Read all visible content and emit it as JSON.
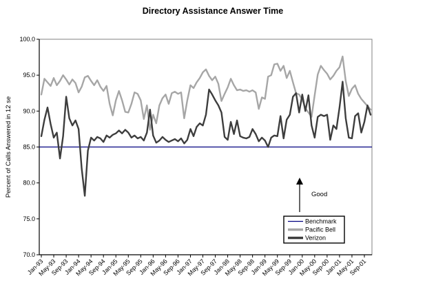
{
  "chart_data": {
    "type": "line",
    "title": "Directory Assistance Answer Time",
    "ylabel": "Percent of Calls Answered in 12 se",
    "xlabel": "",
    "ylim": [
      70,
      100
    ],
    "y_tick_step": 5,
    "y_tick_labels": [
      "100.0",
      "95.0",
      "90.0",
      "85.0",
      "80.0",
      "75.0",
      "70.0"
    ],
    "x_tick_interval": 4,
    "x_tick_labels": [
      "Jan-93",
      "May-93",
      "Sep-93",
      "Jan-94",
      "May-94",
      "Sep-94",
      "Jan-95",
      "May-95",
      "Sep-95",
      "Jan-96",
      "May-96",
      "Sep-96",
      "Jan-97",
      "May-97",
      "Sep-97",
      "Jan-98",
      "May-98",
      "Sep-98",
      "Jan-99",
      "May-99",
      "Sep-99",
      "Jan-00",
      "May-00",
      "Sep-00",
      "Jan-01",
      "May-01",
      "Sep-01"
    ],
    "grid": false,
    "legend_position": "inside-bottom-right",
    "annotation": {
      "text": "Good",
      "arrow": "up"
    },
    "colors": {
      "benchmark": "#000080",
      "pacific_bell": "#a6a6a6",
      "verizon": "#3d3d3d",
      "plot_border": "#808080",
      "axis": "#000000"
    },
    "series": [
      {
        "name": "Benchmark",
        "color": "#000080",
        "width": 1.2,
        "constant": 85
      },
      {
        "name": "Pacific Bell",
        "color": "#a6a6a6",
        "width": 2.4,
        "values": [
          92.3,
          94.5,
          94.0,
          93.5,
          94.6,
          93.6,
          94.2,
          95.0,
          94.4,
          93.7,
          94.4,
          93.9,
          92.6,
          93.4,
          94.7,
          94.9,
          94.2,
          93.6,
          94.3,
          93.4,
          92.8,
          93.5,
          91.0,
          89.4,
          91.5,
          92.8,
          91.5,
          89.9,
          89.8,
          91.0,
          92.6,
          92.4,
          91.5,
          88.9,
          90.8,
          87.4,
          89.5,
          88.3,
          90.8,
          91.8,
          92.3,
          91.0,
          92.5,
          92.7,
          92.4,
          92.6,
          89.0,
          91.5,
          93.6,
          93.2,
          94.0,
          94.6,
          95.4,
          95.8,
          94.9,
          94.3,
          94.8,
          93.8,
          91.4,
          92.4,
          93.3,
          94.5,
          93.6,
          92.9,
          93.0,
          92.8,
          92.9,
          92.7,
          92.9,
          92.6,
          90.3,
          91.9,
          91.7,
          94.8,
          95.0,
          96.5,
          96.6,
          95.6,
          96.3,
          94.6,
          95.6,
          94.0,
          92.5,
          92.3,
          91.6,
          90.4,
          89.8,
          89.2,
          92.2,
          95.1,
          96.3,
          95.7,
          95.2,
          94.4,
          94.9,
          95.6,
          96.1,
          97.6,
          94.2,
          92.1,
          93.1,
          93.6,
          92.4,
          91.7,
          91.2,
          90.7,
          90.2
        ]
      },
      {
        "name": "Verizon",
        "color": "#3d3d3d",
        "width": 2.4,
        "values": [
          86.5,
          88.8,
          90.5,
          88.2,
          86.3,
          87.0,
          83.4,
          86.5,
          92.0,
          89.0,
          88.0,
          88.7,
          87.5,
          82.0,
          78.2,
          84.5,
          86.3,
          85.9,
          86.4,
          86.2,
          85.7,
          86.6,
          86.3,
          86.7,
          86.9,
          87.3,
          86.9,
          87.4,
          87.0,
          86.3,
          86.6,
          86.2,
          86.4,
          85.9,
          87.0,
          90.2,
          86.6,
          85.6,
          85.9,
          86.4,
          86.0,
          85.7,
          85.9,
          86.1,
          85.8,
          86.2,
          85.5,
          86.0,
          87.5,
          86.5,
          87.8,
          88.3,
          88.0,
          89.5,
          93.0,
          92.3,
          91.5,
          90.8,
          89.8,
          86.4,
          86.0,
          88.5,
          86.8,
          88.7,
          86.5,
          86.3,
          86.2,
          86.4,
          87.5,
          86.8,
          85.8,
          86.3,
          85.9,
          85.0,
          86.3,
          86.6,
          86.5,
          89.3,
          86.2,
          88.8,
          89.5,
          92.0,
          92.5,
          89.8,
          92.3,
          90.0,
          92.2,
          88.0,
          86.3,
          89.2,
          89.5,
          89.3,
          89.5,
          86.0,
          88.0,
          87.5,
          90.5,
          94.1,
          89.0,
          86.3,
          86.2,
          89.3,
          89.7,
          87.0,
          88.5,
          90.8,
          89.5
        ]
      }
    ]
  }
}
